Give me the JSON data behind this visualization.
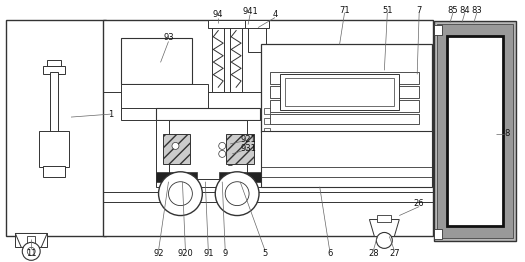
{
  "figsize": [
    5.25,
    2.62
  ],
  "dpi": 100,
  "lc": "#333333",
  "gray_light": "#cccccc",
  "gray_med": "#999999",
  "gray_dark": "#555555",
  "black": "#111111",
  "white": "#ffffff",
  "hatch_gray": "#aaaaaa"
}
